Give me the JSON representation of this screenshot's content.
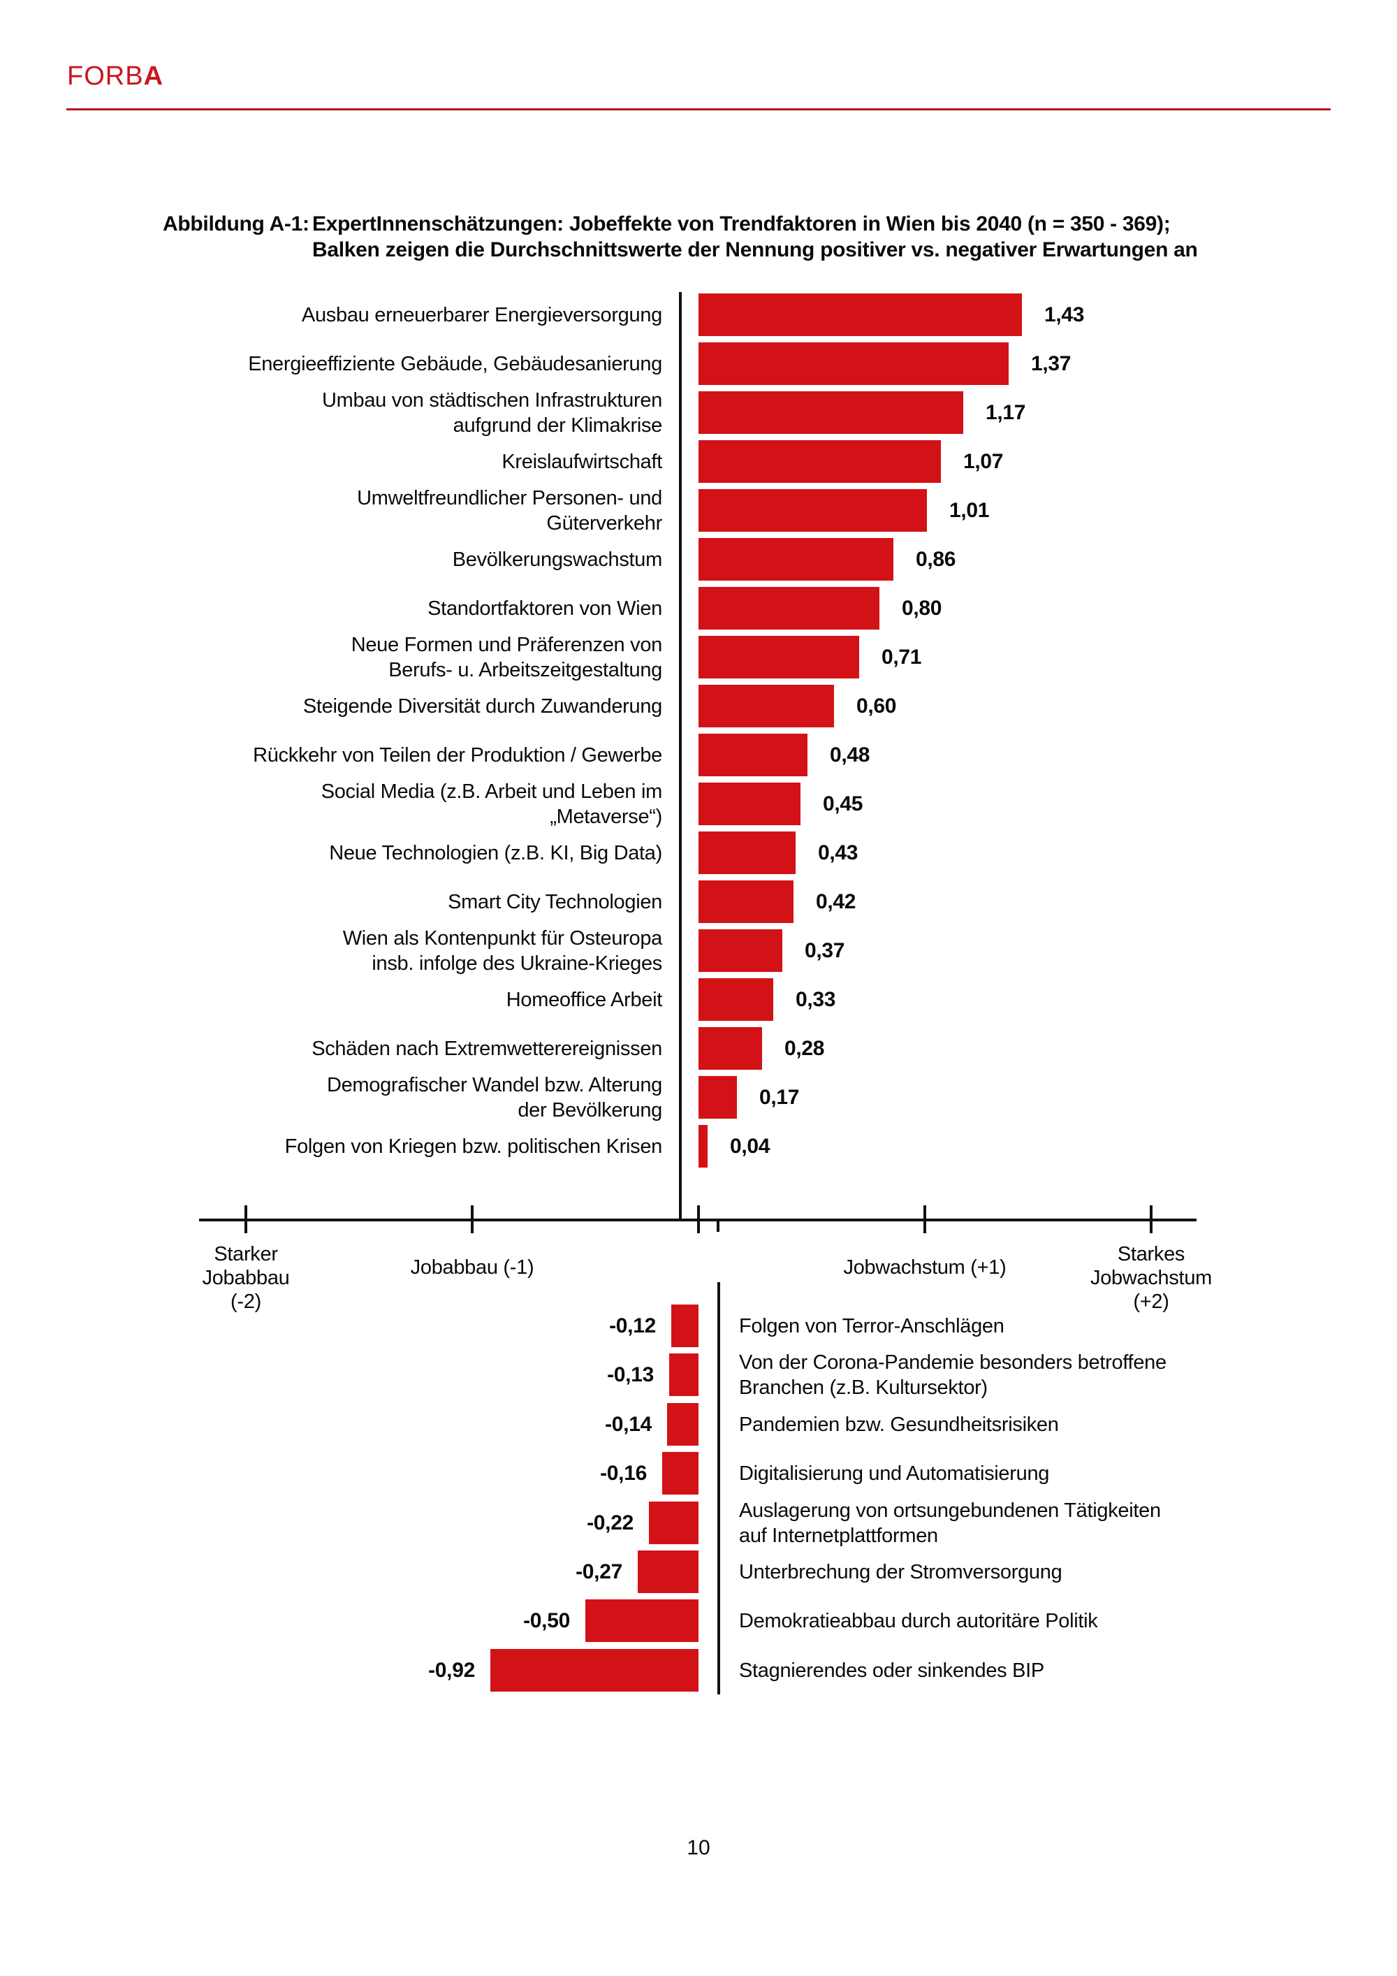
{
  "header": {
    "brand_head": "FORB",
    "brand_tail": "A",
    "brand_color": "#C9161E",
    "rule_color": "#B6151C"
  },
  "figure": {
    "label": "Abbildung A-1:",
    "title_line1": "ExpertInnenschätzungen: Jobeffekte von Trendfaktoren in Wien bis 2040 (n = 350 - 369);",
    "title_line2": "Balken zeigen die Durchschnittswerte der Nennung positiver vs. negativer Erwartungen an"
  },
  "chart_data": {
    "type": "bar",
    "orientation": "horizontal",
    "bar_color": "#D31217",
    "grid": false,
    "legend": false,
    "axis": {
      "min": -2,
      "max": 2,
      "tick_values": [
        -2,
        -1,
        0,
        1,
        2
      ],
      "zero_subtick": true,
      "labels": [
        {
          "x": -2,
          "lines": [
            "Starker",
            "Jobabbau",
            "(-2)"
          ]
        },
        {
          "x": -1,
          "lines": [
            "Jobabbau (-1)"
          ]
        },
        {
          "x": 1,
          "lines": [
            "Jobwachstum (+1)"
          ]
        },
        {
          "x": 2,
          "lines": [
            "Starkes",
            "Jobwachstum",
            "(+2)"
          ]
        }
      ]
    },
    "positive_series": [
      {
        "lines": [
          "Ausbau erneuerbarer Energieversorgung"
        ],
        "value": 1.43,
        "display": "1,43"
      },
      {
        "lines": [
          "Energieeffiziente Gebäude, Gebäudesanierung"
        ],
        "value": 1.37,
        "display": "1,37"
      },
      {
        "lines": [
          "Umbau von städtischen Infrastrukturen",
          "aufgrund der Klimakrise"
        ],
        "value": 1.17,
        "display": "1,17"
      },
      {
        "lines": [
          "Kreislaufwirtschaft"
        ],
        "value": 1.07,
        "display": "1,07"
      },
      {
        "lines": [
          "Umweltfreundlicher Personen- und",
          "Güterverkehr"
        ],
        "value": 1.01,
        "display": "1,01"
      },
      {
        "lines": [
          "Bevölkerungswachstum"
        ],
        "value": 0.86,
        "display": "0,86"
      },
      {
        "lines": [
          "Standortfaktoren von Wien"
        ],
        "value": 0.8,
        "display": "0,80"
      },
      {
        "lines": [
          "Neue Formen und Präferenzen von",
          "Berufs- u. Arbeitszeitgestaltung"
        ],
        "value": 0.71,
        "display": "0,71"
      },
      {
        "lines": [
          "Steigende Diversität durch Zuwanderung"
        ],
        "value": 0.6,
        "display": "0,60"
      },
      {
        "lines": [
          "Rückkehr von Teilen der Produktion / Gewerbe"
        ],
        "value": 0.48,
        "display": "0,48"
      },
      {
        "lines": [
          "Social Media (z.B. Arbeit und Leben im",
          "„Metaverse“)"
        ],
        "value": 0.45,
        "display": "0,45"
      },
      {
        "lines": [
          "Neue Technologien (z.B. KI, Big Data)"
        ],
        "value": 0.43,
        "display": "0,43"
      },
      {
        "lines": [
          "Smart City Technologien"
        ],
        "value": 0.42,
        "display": "0,42"
      },
      {
        "lines": [
          "Wien als Kontenpunkt für Osteuropa",
          "insb. infolge des Ukraine-Krieges"
        ],
        "value": 0.37,
        "display": "0,37"
      },
      {
        "lines": [
          "Homeoffice Arbeit"
        ],
        "value": 0.33,
        "display": "0,33"
      },
      {
        "lines": [
          "Schäden nach Extremwetterereignissen"
        ],
        "value": 0.28,
        "display": "0,28"
      },
      {
        "lines": [
          "Demografischer Wandel bzw. Alterung",
          "der Bevölkerung"
        ],
        "value": 0.17,
        "display": "0,17"
      },
      {
        "lines": [
          "Folgen von Kriegen bzw. politischen Krisen"
        ],
        "value": 0.04,
        "display": "0,04"
      }
    ],
    "negative_series": [
      {
        "lines": [
          "Folgen von Terror-Anschlägen"
        ],
        "value": -0.12,
        "display": "-0,12"
      },
      {
        "lines": [
          "Von der Corona-Pandemie besonders betroffene",
          "Branchen (z.B. Kultursektor)"
        ],
        "value": -0.13,
        "display": "-0,13"
      },
      {
        "lines": [
          "Pandemien bzw. Gesundheitsrisiken"
        ],
        "value": -0.14,
        "display": "-0,14"
      },
      {
        "lines": [
          "Digitalisierung und Automatisierung"
        ],
        "value": -0.16,
        "display": "-0,16"
      },
      {
        "lines": [
          "Auslagerung von ortsungebundenen Tätigkeiten",
          "auf Internetplattformen"
        ],
        "value": -0.22,
        "display": "-0,22"
      },
      {
        "lines": [
          "Unterbrechung der Stromversorgung"
        ],
        "value": -0.27,
        "display": "-0,27"
      },
      {
        "lines": [
          "Demokratieabbau durch autoritäre Politik"
        ],
        "value": -0.5,
        "display": "-0,50"
      },
      {
        "lines": [
          "Stagnierendes oder sinkendes BIP"
        ],
        "value": -0.92,
        "display": "-0,92"
      }
    ]
  },
  "footer": {
    "page_number": "10"
  }
}
